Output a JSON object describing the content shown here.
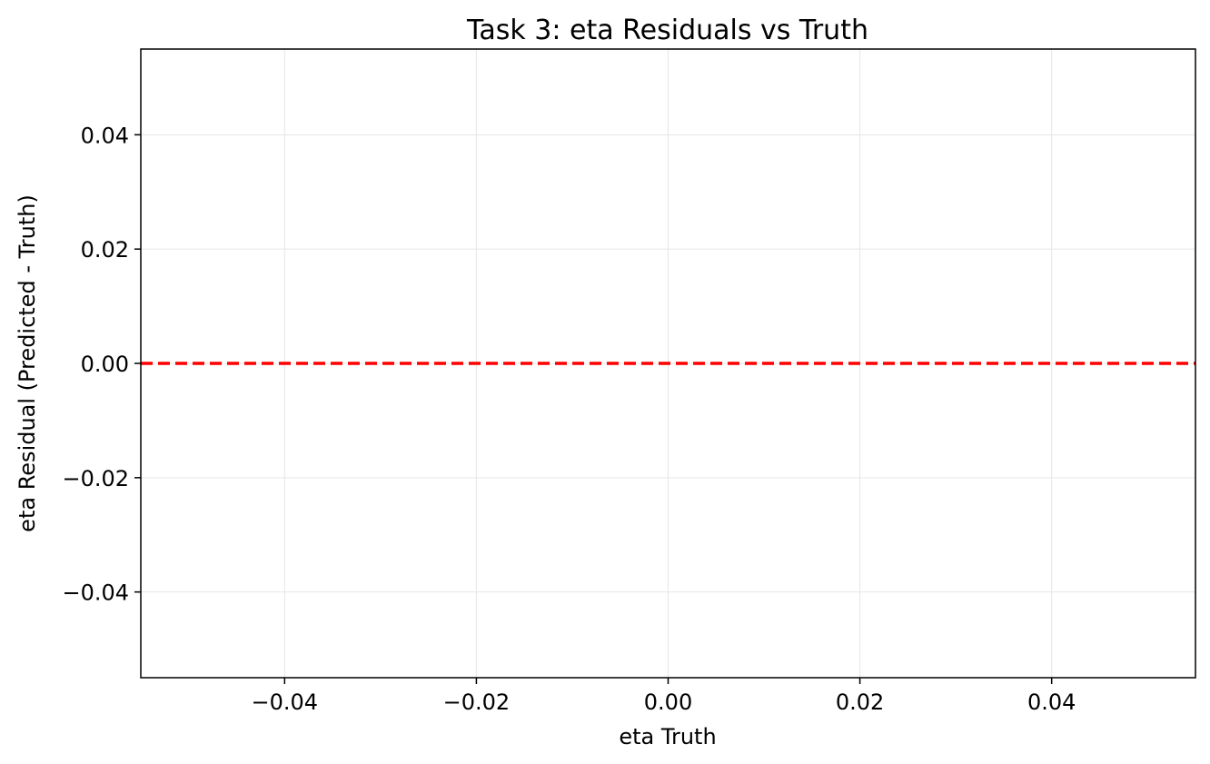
{
  "chart_data": {
    "type": "scatter",
    "title": "Task 3: eta Residuals vs Truth",
    "xlabel": "eta Truth",
    "ylabel": "eta Residual (Predicted - Truth)",
    "xlim": [
      -0.055,
      0.055
    ],
    "ylim": [
      -0.055,
      0.055
    ],
    "x_ticks": [
      -0.04,
      -0.02,
      0.0,
      0.02,
      0.04
    ],
    "x_tick_labels": [
      "−0.04",
      "−0.02",
      "0.00",
      "0.02",
      "0.04"
    ],
    "y_ticks": [
      -0.04,
      -0.02,
      0.0,
      0.02,
      0.04
    ],
    "y_tick_labels": [
      "−0.04",
      "−0.02",
      "0.00",
      "0.02",
      "0.04"
    ],
    "grid": true,
    "series": [
      {
        "x": [],
        "y": []
      }
    ],
    "reference_line": {
      "y": 0.0,
      "style": "dashed",
      "color": "#ff0000"
    }
  }
}
